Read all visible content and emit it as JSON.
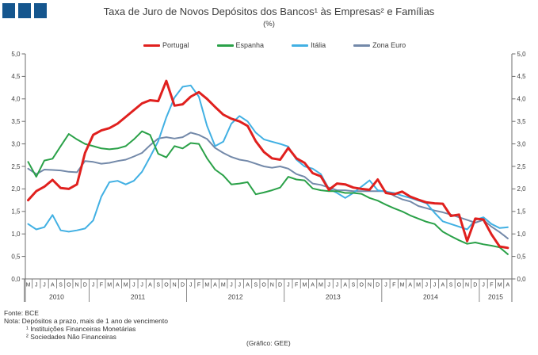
{
  "logo": {
    "square_count": 3,
    "color": "#15568e"
  },
  "header": {
    "title": "Taxa de Juro de Novos Depósitos dos Bancos¹ às Empresas² e Famílias",
    "subtitle": "(%)"
  },
  "chart_data": {
    "type": "line",
    "unit": "%",
    "ylim": [
      0.0,
      5.0
    ],
    "y_tick_step": 0.5,
    "y_tick_labels": [
      "0,0",
      "0,5",
      "1,0",
      "1,5",
      "2,0",
      "2,5",
      "3,0",
      "3,5",
      "4,0",
      "4,5",
      "5,0"
    ],
    "grid": false,
    "legend_position": "top",
    "dual_y_axis": true,
    "x_month_labels": [
      "M",
      "J",
      "J",
      "A",
      "S",
      "O",
      "N",
      "D",
      "J",
      "F",
      "M",
      "A",
      "M",
      "J",
      "J",
      "A",
      "S",
      "O",
      "N",
      "D",
      "J",
      "F",
      "M",
      "A",
      "M",
      "J",
      "J",
      "A",
      "S",
      "O",
      "N",
      "D",
      "J",
      "F",
      "M",
      "A",
      "M",
      "J",
      "J",
      "A",
      "S",
      "O",
      "N",
      "D",
      "J",
      "F",
      "M",
      "A",
      "M",
      "J",
      "J",
      "A",
      "S",
      "O",
      "N",
      "D",
      "J",
      "F",
      "M",
      "A"
    ],
    "year_groups": [
      {
        "label": "2010",
        "months": 8
      },
      {
        "label": "2011",
        "months": 12
      },
      {
        "label": "2012",
        "months": 12
      },
      {
        "label": "2013",
        "months": 12
      },
      {
        "label": "2014",
        "months": 12
      },
      {
        "label": "2015",
        "months": 4
      }
    ],
    "series": [
      {
        "name": "Portugal",
        "color": "#e0201e",
        "width": 3,
        "values": [
          1.75,
          1.95,
          2.05,
          2.2,
          2.02,
          2.0,
          2.1,
          2.8,
          3.2,
          3.3,
          3.35,
          3.45,
          3.6,
          3.75,
          3.9,
          3.97,
          3.95,
          4.4,
          3.85,
          3.88,
          4.05,
          4.15,
          4.0,
          3.82,
          3.65,
          3.56,
          3.5,
          3.4,
          3.06,
          2.82,
          2.68,
          2.65,
          2.91,
          2.68,
          2.58,
          2.35,
          2.28,
          1.98,
          2.12,
          2.1,
          2.03,
          2.0,
          1.98,
          2.21,
          1.91,
          1.88,
          1.94,
          1.83,
          1.76,
          1.7,
          1.68,
          1.67,
          1.4,
          1.43,
          0.84,
          1.34,
          1.32,
          0.99,
          0.72,
          0.69
        ]
      },
      {
        "name": "Espanha",
        "color": "#2aa148",
        "width": 2,
        "values": [
          2.6,
          2.27,
          2.63,
          2.67,
          2.95,
          3.22,
          3.1,
          3.0,
          2.95,
          2.9,
          2.88,
          2.9,
          2.95,
          3.1,
          3.28,
          3.2,
          2.78,
          2.7,
          2.95,
          2.9,
          3.02,
          3.0,
          2.68,
          2.43,
          2.3,
          2.1,
          2.12,
          2.15,
          1.88,
          1.92,
          1.97,
          2.03,
          2.27,
          2.21,
          2.19,
          2.01,
          1.97,
          1.95,
          1.95,
          1.91,
          1.91,
          1.89,
          1.8,
          1.74,
          1.65,
          1.57,
          1.5,
          1.41,
          1.34,
          1.27,
          1.22,
          1.05,
          0.95,
          0.86,
          0.78,
          0.81,
          0.77,
          0.74,
          0.7,
          0.55
        ]
      },
      {
        "name": "Itália",
        "color": "#41b0e3",
        "width": 2,
        "values": [
          1.22,
          1.1,
          1.15,
          1.42,
          1.08,
          1.05,
          1.08,
          1.12,
          1.3,
          1.83,
          2.15,
          2.18,
          2.1,
          2.18,
          2.38,
          2.71,
          3.06,
          3.59,
          4.03,
          4.27,
          4.3,
          4.05,
          3.4,
          2.95,
          3.05,
          3.45,
          3.62,
          3.5,
          3.25,
          3.1,
          3.05,
          3.0,
          2.94,
          2.65,
          2.5,
          2.45,
          2.33,
          2.0,
          1.91,
          1.8,
          1.91,
          2.05,
          2.19,
          1.97,
          1.94,
          1.91,
          1.85,
          1.8,
          1.74,
          1.68,
          1.47,
          1.28,
          1.22,
          1.16,
          1.1,
          1.31,
          1.37,
          1.22,
          1.13,
          1.15
        ]
      },
      {
        "name": "Zona Euro",
        "color": "#7389a9",
        "width": 2,
        "values": [
          2.45,
          2.33,
          2.43,
          2.42,
          2.41,
          2.38,
          2.37,
          2.62,
          2.6,
          2.56,
          2.58,
          2.62,
          2.65,
          2.72,
          2.8,
          2.97,
          3.12,
          3.15,
          3.12,
          3.15,
          3.25,
          3.2,
          3.11,
          2.91,
          2.8,
          2.71,
          2.65,
          2.62,
          2.56,
          2.5,
          2.47,
          2.5,
          2.45,
          2.33,
          2.27,
          2.12,
          2.09,
          2.03,
          1.97,
          1.97,
          1.95,
          1.95,
          1.95,
          1.95,
          1.95,
          1.85,
          1.77,
          1.72,
          1.62,
          1.57,
          1.52,
          1.48,
          1.43,
          1.37,
          1.31,
          1.25,
          1.31,
          1.16,
          1.04,
          0.9
        ]
      }
    ]
  },
  "footer": {
    "fonte": "Fonte: BCE",
    "nota": "Nota: Depósitos a prazo, mais de 1 ano de vencimento",
    "nota1": "¹ Instituições Financeiras Monetárias",
    "nota2": "² Sociedades Não Financeiras",
    "credit": "(Gráfico: GEE)"
  }
}
